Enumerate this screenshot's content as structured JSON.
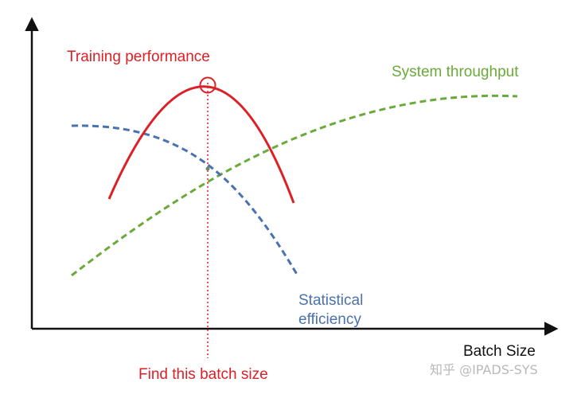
{
  "labels": {
    "training_performance": "Training performance",
    "system_throughput": "System throughput",
    "statistical_efficiency_line1": "Statistical",
    "statistical_efficiency_line2": "efficiency",
    "x_axis": "Batch Size",
    "marker_caption": "Find this batch size"
  },
  "watermark": "知乎 @IPADS-SYS",
  "colors": {
    "training_performance": "#dd1f26",
    "system_throughput": "#6aaa3a",
    "statistical_efficiency": "#4a71b0",
    "axes": "#111111",
    "watermark": "#b9b9b9"
  }
}
